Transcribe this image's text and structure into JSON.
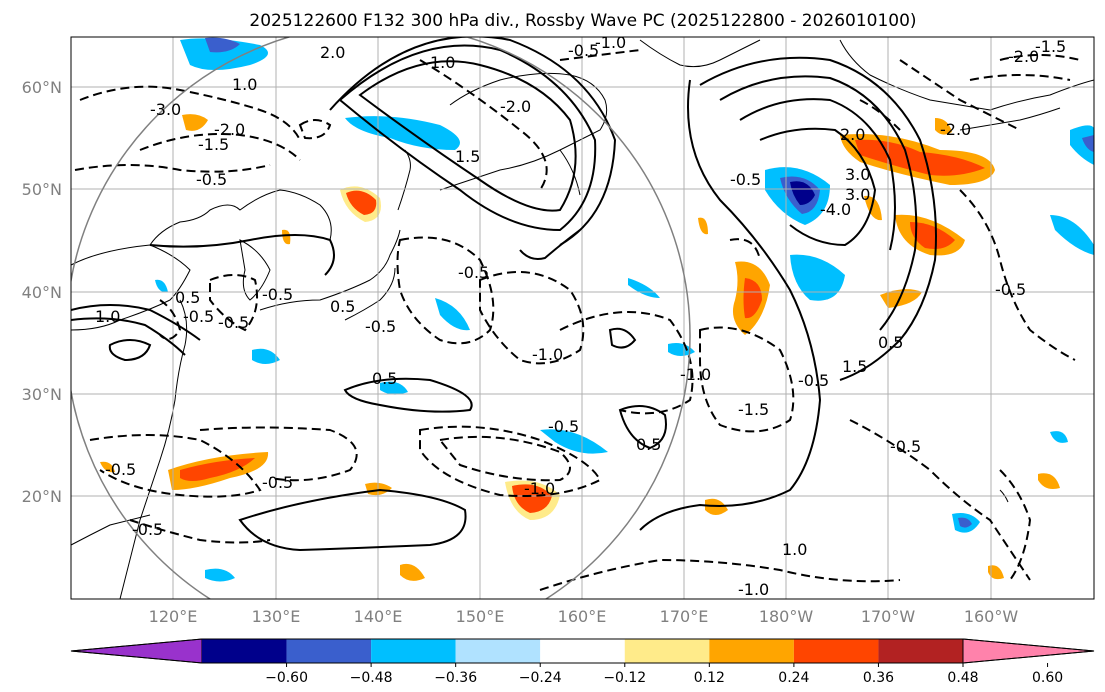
{
  "title": "2025122600 F132 300 hPa div., Rossby Wave PC (2025122800 - 2026010100)",
  "axes": {
    "lon_labels": [
      "120°E",
      "130°E",
      "140°E",
      "150°E",
      "160°E",
      "170°E",
      "180°W",
      "170°W",
      "160°W"
    ],
    "lat_labels": [
      "60°N",
      "50°N",
      "40°N",
      "30°N",
      "20°N"
    ]
  },
  "colorbar": {
    "tick_labels": [
      "−0.60",
      "−0.48",
      "−0.36",
      "−0.24",
      "−0.12",
      "0.12",
      "0.24",
      "0.36",
      "0.48",
      "0.60"
    ],
    "colors": [
      "#9932cc",
      "#00008b",
      "#3a5fcd",
      "#00bfff",
      "#b0e2ff",
      "#ffffff",
      "#ffeb8a",
      "#ffa500",
      "#ff4500",
      "#b22222",
      "#ff82ab"
    ]
  },
  "contour_labels": [
    "2.0",
    "-0.5",
    "1.0",
    "-2.0",
    "-1.5",
    "-1.0",
    "1.0",
    "-2.0",
    "3.0",
    "-3.0",
    "-1.5",
    "2.0",
    "-2.0",
    "1.5",
    "-0.5",
    "0.5",
    "-0.5",
    "1.0",
    "-0.5",
    "-0.5",
    "-0.5",
    "0.5",
    "-1.0",
    "0.5",
    "-0.5",
    "-0.5",
    "-0.5",
    "0.5",
    "-1.0",
    "-1.5",
    "-0.5",
    "1.5",
    "0.5",
    "-0.5",
    "-0.5",
    "-1.0",
    "1.0",
    "-1.0",
    "-0.5",
    "-2.0",
    "-0.5",
    "-4.0",
    "3.0",
    "-0.5"
  ]
}
